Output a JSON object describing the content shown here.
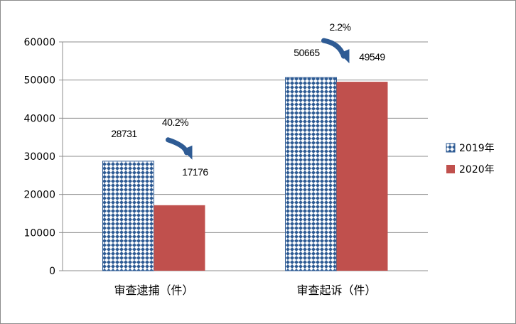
{
  "chart_data": {
    "type": "bar",
    "title": "",
    "xlabel": "",
    "ylabel": "",
    "categories": [
      "审查逮捕（件）",
      "审查起诉（件）"
    ],
    "series": [
      {
        "name": "2019年",
        "values": [
          28731,
          50665
        ],
        "color": "#2e5b94",
        "pattern": "diamond-dots"
      },
      {
        "name": "2020年",
        "values": [
          17176,
          49549
        ],
        "color": "#c0504d"
      }
    ],
    "ylim": [
      0,
      60000
    ],
    "yticks": [
      0,
      10000,
      20000,
      30000,
      40000,
      50000,
      60000
    ],
    "grid": true,
    "legend": "right",
    "annotations": [
      {
        "category": "审查逮捕（件）",
        "text": "40.2%"
      },
      {
        "category": "审查起诉（件）",
        "text": "2.2%"
      }
    ],
    "arrow_color": "#2e5b94"
  }
}
